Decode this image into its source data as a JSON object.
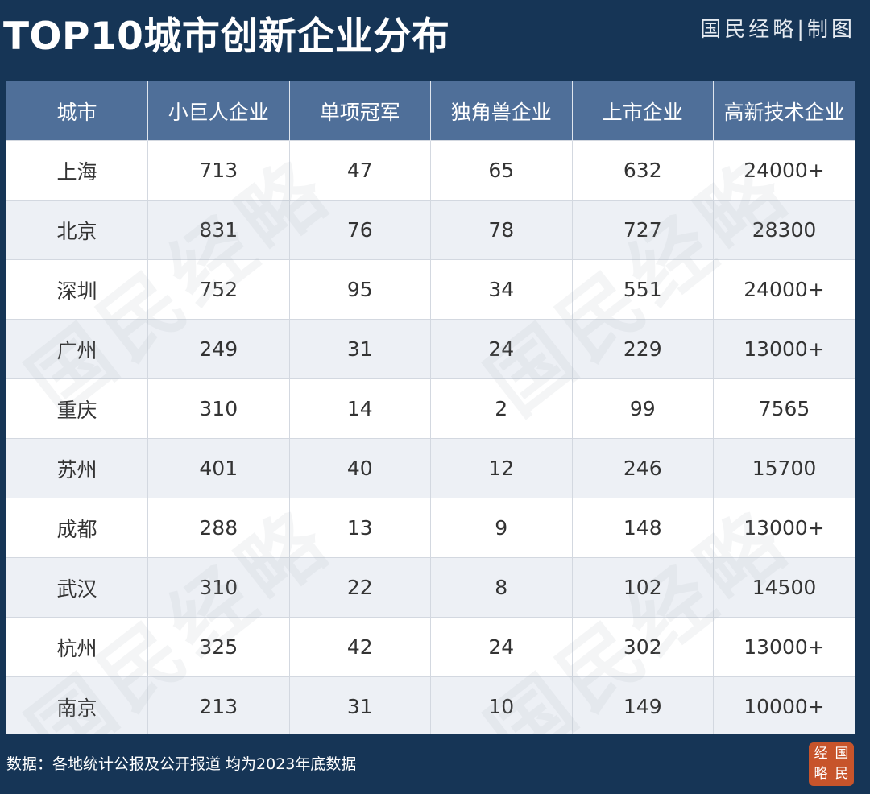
{
  "title": "TOP10城市创新企业分布",
  "brand": "国民经略|制图",
  "source": "数据：各地统计公报及公开报道 均为2023年底数据",
  "seal": [
    "经",
    "国",
    "略",
    "民"
  ],
  "watermark": "国民经略",
  "colors": {
    "background": "#163556",
    "header": "#4f6f99",
    "row_alt": "#edf0f5",
    "seal": "#c7542b"
  },
  "chart_data": {
    "type": "table",
    "title": "TOP10城市创新企业分布",
    "columns": [
      "城市",
      "小巨人企业",
      "单项冠军",
      "独角兽企业",
      "上市企业",
      "高新技术企业"
    ],
    "rows": [
      [
        "上海",
        "713",
        "47",
        "65",
        "632",
        "24000+"
      ],
      [
        "北京",
        "831",
        "76",
        "78",
        "727",
        "28300"
      ],
      [
        "深圳",
        "752",
        "95",
        "34",
        "551",
        "24000+"
      ],
      [
        "广州",
        "249",
        "31",
        "24",
        "229",
        "13000+"
      ],
      [
        "重庆",
        "310",
        "14",
        "2",
        "99",
        "7565"
      ],
      [
        "苏州",
        "401",
        "40",
        "12",
        "246",
        "15700"
      ],
      [
        "成都",
        "288",
        "13",
        "9",
        "148",
        "13000+"
      ],
      [
        "武汉",
        "310",
        "22",
        "8",
        "102",
        "14500"
      ],
      [
        "杭州",
        "325",
        "42",
        "24",
        "302",
        "13000+"
      ],
      [
        "南京",
        "213",
        "31",
        "10",
        "149",
        "10000+"
      ]
    ]
  }
}
